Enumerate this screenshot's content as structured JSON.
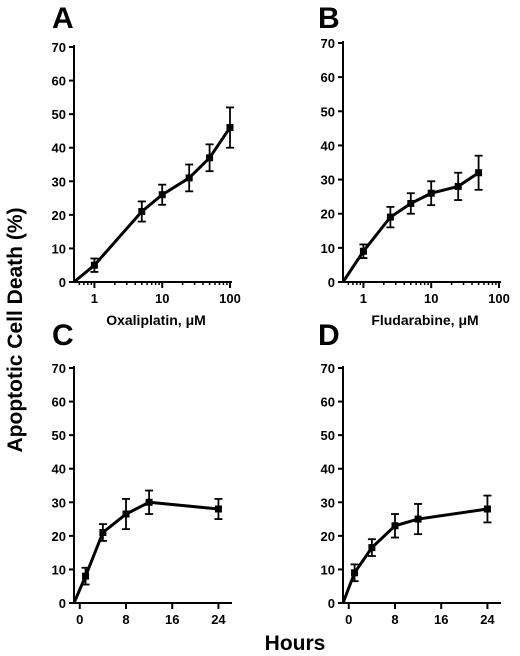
{
  "figure": {
    "ylabel": "Apoptotic Cell Death (%)",
    "xlabel_bottom": "Hours"
  },
  "chart_data": [
    {
      "panel": "A",
      "type": "line",
      "xscale": "log",
      "xlim": [
        0.5,
        100
      ],
      "ylim": [
        0,
        70
      ],
      "yticks": [
        0,
        10,
        20,
        30,
        40,
        50,
        60,
        70
      ],
      "xticks": [
        1,
        10,
        100
      ],
      "xlabel_prefix": "Oxaliplatin, ",
      "xlabel_unit": "μM",
      "points": [
        {
          "x": 0.5,
          "y": 0,
          "err": 0
        },
        {
          "x": 1,
          "y": 5,
          "err": 2
        },
        {
          "x": 5,
          "y": 21,
          "err": 3
        },
        {
          "x": 10,
          "y": 26,
          "err": 3
        },
        {
          "x": 25,
          "y": 31,
          "err": 4
        },
        {
          "x": 50,
          "y": 37,
          "err": 4
        },
        {
          "x": 100,
          "y": 46,
          "err": 6
        }
      ]
    },
    {
      "panel": "B",
      "type": "line",
      "xscale": "log",
      "xlim": [
        0.5,
        100
      ],
      "ylim": [
        0,
        70
      ],
      "yticks": [
        0,
        10,
        20,
        30,
        40,
        50,
        60,
        70
      ],
      "xticks": [
        1,
        10,
        100
      ],
      "xlabel_prefix": "Fludarabine, ",
      "xlabel_unit": "μM",
      "points": [
        {
          "x": 0.5,
          "y": 0,
          "err": 0
        },
        {
          "x": 1,
          "y": 9,
          "err": 2
        },
        {
          "x": 2.5,
          "y": 19,
          "err": 3
        },
        {
          "x": 5,
          "y": 23,
          "err": 3
        },
        {
          "x": 10,
          "y": 26,
          "err": 3.5
        },
        {
          "x": 25,
          "y": 28,
          "err": 4
        },
        {
          "x": 50,
          "y": 32,
          "err": 5
        }
      ]
    },
    {
      "panel": "C",
      "type": "line",
      "xscale": "linear",
      "xlim": [
        -1,
        26
      ],
      "ylim": [
        0,
        70
      ],
      "yticks": [
        0,
        10,
        20,
        30,
        40,
        50,
        60,
        70
      ],
      "xticks": [
        0,
        8,
        16,
        24
      ],
      "points": [
        {
          "x": -1,
          "y": 0,
          "err": 0
        },
        {
          "x": 1,
          "y": 8,
          "err": 2.5
        },
        {
          "x": 4,
          "y": 21,
          "err": 2.5
        },
        {
          "x": 8,
          "y": 26.5,
          "err": 4.5
        },
        {
          "x": 12,
          "y": 30,
          "err": 3.5
        },
        {
          "x": 24,
          "y": 28,
          "err": 3
        }
      ]
    },
    {
      "panel": "D",
      "type": "line",
      "xscale": "linear",
      "xlim": [
        -1,
        26
      ],
      "ylim": [
        0,
        70
      ],
      "yticks": [
        0,
        10,
        20,
        30,
        40,
        50,
        60,
        70
      ],
      "xticks": [
        0,
        8,
        16,
        24
      ],
      "points": [
        {
          "x": -1,
          "y": 0,
          "err": 0
        },
        {
          "x": 1,
          "y": 9,
          "err": 2.5
        },
        {
          "x": 4,
          "y": 16.5,
          "err": 2.5
        },
        {
          "x": 8,
          "y": 23,
          "err": 3.5
        },
        {
          "x": 12,
          "y": 25,
          "err": 4.5
        },
        {
          "x": 24,
          "y": 28,
          "err": 4
        }
      ]
    }
  ]
}
